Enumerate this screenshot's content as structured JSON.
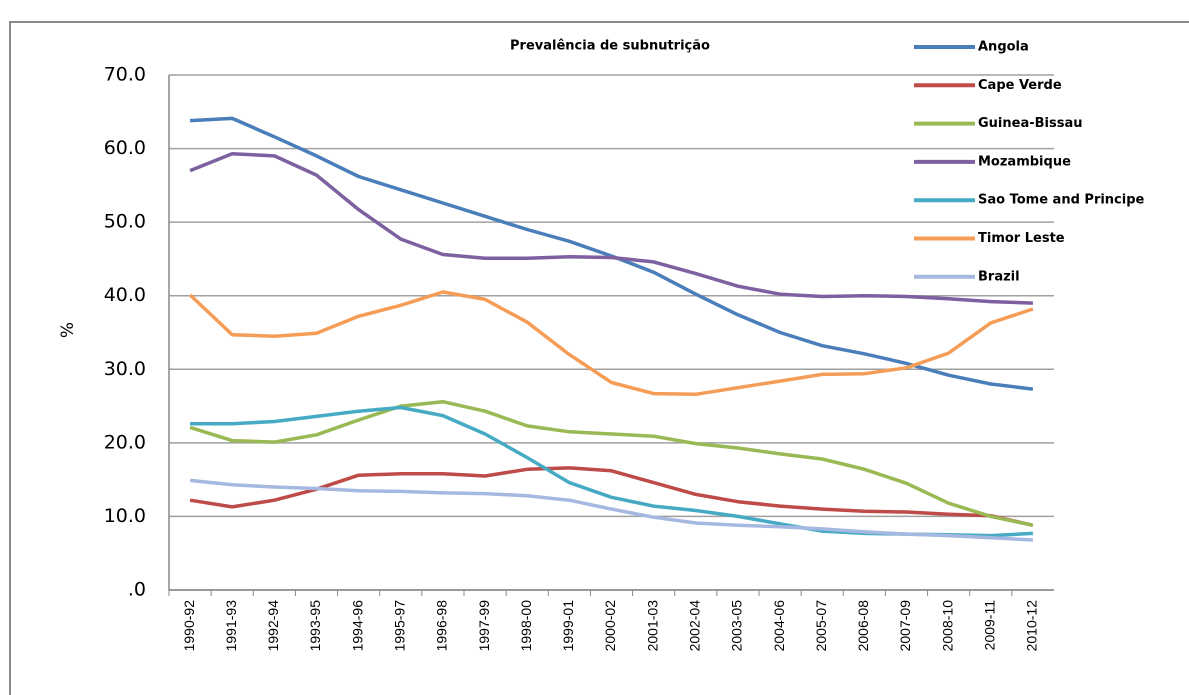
{
  "chart_data": {
    "type": "line",
    "title": "Prevalência de subnutrição",
    "y_label": "%",
    "categories": [
      "1990-92",
      "1991-93",
      "1992-94",
      "1993-95",
      "1994-96",
      "1995-97",
      "1996-98",
      "1997-99",
      "1998-00",
      "1999-01",
      "2000-02",
      "2001-03",
      "2002-04",
      "2003-05",
      "2004-06",
      "2005-07",
      "2006-08",
      "2007-09",
      "2008-10",
      "2009-11",
      "2010-12"
    ],
    "series": [
      {
        "name": "Angola",
        "color": "#4a7ebb",
        "values": [
          63.8,
          64.1,
          61.6,
          59.0,
          56.2,
          54.4,
          52.6,
          50.8,
          49.0,
          47.4,
          45.4,
          43.2,
          40.2,
          37.4,
          35.0,
          33.2,
          32.1,
          30.8,
          29.2,
          28.0,
          27.3
        ]
      },
      {
        "name": "Cape Verde",
        "color": "#be4b48",
        "values": [
          12.2,
          11.3,
          12.2,
          13.7,
          15.6,
          15.8,
          15.8,
          15.5,
          16.4,
          16.6,
          16.2,
          14.6,
          13.0,
          12.0,
          11.4,
          11.0,
          10.7,
          10.6,
          10.3,
          10.1,
          8.8
        ]
      },
      {
        "name": "Guinea-Bissau",
        "color": "#98b954",
        "values": [
          22.1,
          20.3,
          20.1,
          21.1,
          23.1,
          25.0,
          25.6,
          24.3,
          22.3,
          21.5,
          21.2,
          20.9,
          19.9,
          19.3,
          18.5,
          17.8,
          16.4,
          14.5,
          11.8,
          10.0,
          8.8
        ]
      },
      {
        "name": "Mozambique",
        "color": "#7d60a0",
        "values": [
          57.0,
          59.3,
          59.0,
          56.4,
          51.7,
          47.7,
          45.6,
          45.1,
          45.1,
          45.3,
          45.2,
          44.6,
          43.0,
          41.3,
          40.2,
          39.9,
          40.0,
          39.9,
          39.6,
          39.2,
          39.0
        ]
      },
      {
        "name": "Sao Tome and Principe",
        "color": "#46aac5",
        "values": [
          22.6,
          22.6,
          22.9,
          23.6,
          24.3,
          24.8,
          23.7,
          21.2,
          18.0,
          14.6,
          12.6,
          11.4,
          10.8,
          10.0,
          9.0,
          8.0,
          7.7,
          7.6,
          7.5,
          7.4,
          7.7
        ]
      },
      {
        "name": "Timor Leste",
        "color": "#f59d56",
        "values": [
          40.1,
          34.7,
          34.5,
          34.9,
          37.2,
          38.7,
          40.5,
          39.5,
          36.4,
          32.0,
          28.2,
          26.7,
          26.6,
          27.5,
          28.4,
          29.3,
          29.4,
          30.2,
          32.2,
          36.3,
          38.2
        ]
      },
      {
        "name": "Brazil",
        "color": "#a5b8e0",
        "values": [
          14.9,
          14.3,
          14.0,
          13.8,
          13.5,
          13.4,
          13.2,
          13.1,
          12.8,
          12.2,
          11.0,
          9.9,
          9.1,
          8.8,
          8.6,
          8.3,
          7.9,
          7.6,
          7.4,
          7.1,
          6.8
        ]
      }
    ],
    "ylim": [
      0,
      70
    ],
    "yticks": [
      {
        "value": 0,
        "label": ".0"
      },
      {
        "value": 10,
        "label": "10.0"
      },
      {
        "value": 20,
        "label": "20.0"
      },
      {
        "value": 30,
        "label": "30.0"
      },
      {
        "value": 40,
        "label": "40.0"
      },
      {
        "value": 50,
        "label": "50.0"
      },
      {
        "value": 60,
        "label": "60.0"
      },
      {
        "value": 70,
        "label": "70.0"
      }
    ],
    "grid": true
  }
}
